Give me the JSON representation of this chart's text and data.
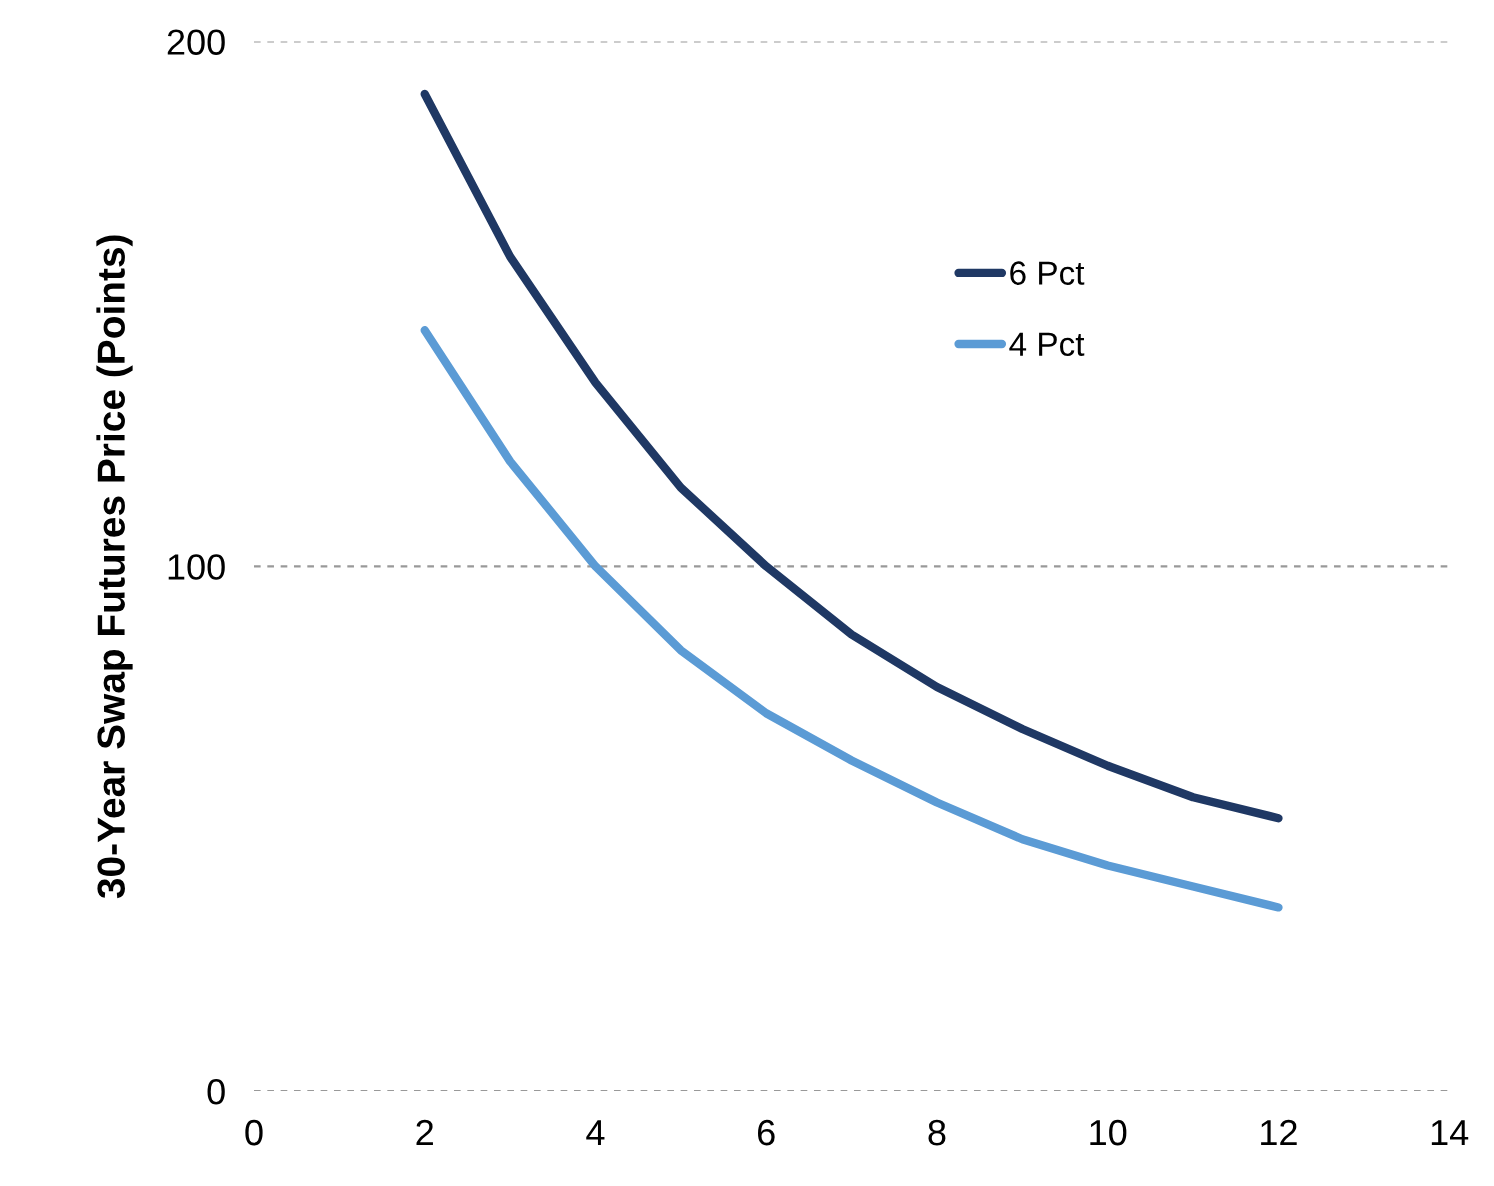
{
  "chart_data": {
    "type": "line",
    "ylabel": "30-Year Swap Futures Price (Points)",
    "x": [
      2,
      3,
      4,
      5,
      6,
      7,
      8,
      9,
      10,
      11,
      12
    ],
    "series": [
      {
        "name": "6 Pct",
        "color": "#1f3864",
        "values": [
          190,
          159,
          135,
          115,
          100,
          87,
          77,
          69,
          62,
          56,
          52
        ]
      },
      {
        "name": "4 Pct",
        "color": "#5b9bd5",
        "values": [
          145,
          120,
          100,
          84,
          72,
          63,
          55,
          48,
          43,
          39,
          35
        ]
      }
    ],
    "xlim": [
      0,
      14
    ],
    "xticks": [
      0,
      2,
      4,
      6,
      8,
      10,
      12,
      14
    ],
    "ylim": [
      0,
      200
    ],
    "yticks": [
      0,
      100,
      200
    ],
    "grid": "y",
    "legend": "top right",
    "marker": "none",
    "line_style": "solid"
  }
}
